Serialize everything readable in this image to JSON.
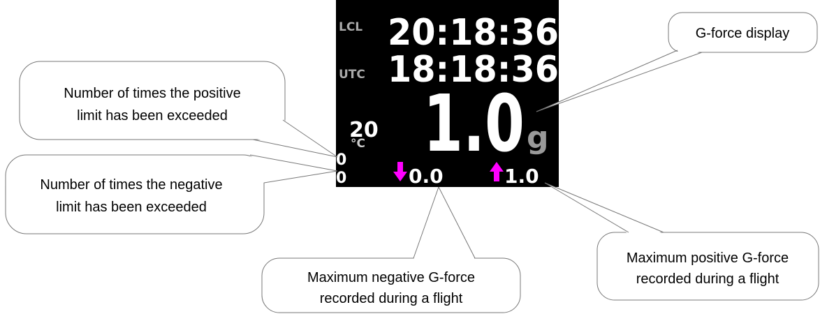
{
  "display": {
    "local_label": "LCL",
    "local_time": "20:18:36",
    "utc_label": "UTC",
    "utc_time": "18:18:36",
    "temperature": "20",
    "temperature_unit": "°C",
    "g_force": "1.0",
    "g_unit": "g",
    "positive_exceed_count": "0",
    "negative_exceed_count": "0",
    "max_negative": "0.0",
    "max_positive": "1.0"
  },
  "callouts": [
    {
      "lines": [
        "Number of times the positive",
        "limit has been exceeded"
      ]
    },
    {
      "lines": [
        "Number of times the negative",
        "limit has been exceeded"
      ]
    },
    {
      "lines": [
        "G-force display"
      ]
    },
    {
      "lines": [
        "Maximum negative G-force",
        "recorded during a flight"
      ]
    },
    {
      "lines": [
        "Maximum positive G-force",
        "recorded during a flight"
      ]
    }
  ]
}
